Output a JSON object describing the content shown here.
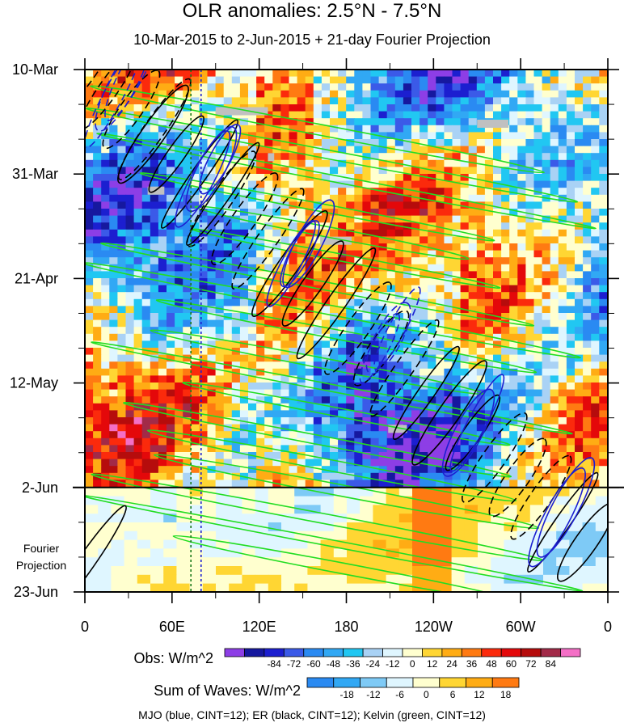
{
  "title": "OLR anomalies: 2.5°N - 7.5°N",
  "subtitle": "10-Mar-2015 to 2-Jun-2015 + 21-day Fourier Projection",
  "footer": "MJO (blue, CINT=12); ER (black, CINT=12); Kelvin (green, CINT=12)",
  "forecast_label": [
    "Fourier",
    "Projection"
  ],
  "chart_data": {
    "type": "heatmap",
    "title": "OLR anomalies: 2.5°N - 7.5°N",
    "subtitle": "10-Mar-2015 to 2-Jun-2015 + 21-day Fourier Projection",
    "xlabel": "",
    "ylabel": "",
    "x_ticks": [
      "0",
      "60E",
      "120E",
      "180",
      "120W",
      "60W",
      "0"
    ],
    "x_tick_values": [
      0,
      60,
      120,
      180,
      240,
      300,
      360
    ],
    "y_ticks": [
      "10-Mar",
      "31-Mar",
      "21-Apr",
      "12-May",
      "2-Jun",
      "23-Jun"
    ],
    "y_tick_days": [
      0,
      21,
      42,
      63,
      84,
      105
    ],
    "observed_end": "2-Jun",
    "colorbars": [
      {
        "title": "Obs: W/m^2",
        "ticks": [
          "-84",
          "-72",
          "-60",
          "-48",
          "-36",
          "-24",
          "-12",
          "0",
          "12",
          "24",
          "36",
          "48",
          "60",
          "72",
          "84"
        ],
        "colors": [
          "#8d3ee6",
          "#16189f",
          "#1c1fd0",
          "#3b5ae8",
          "#2a8af2",
          "#31a8f4",
          "#21c7f2",
          "#a9d2f5",
          "#dff6ff",
          "#ffffcf",
          "#ffd633",
          "#ffac14",
          "#ff7a12",
          "#fb2a0c",
          "#e4080a",
          "#b60c0c",
          "#a22a48",
          "#f46fc6"
        ]
      },
      {
        "title": "Sum of Waves: W/m^2",
        "ticks": [
          "-18",
          "-12",
          "-6",
          "0",
          "6",
          "12",
          "18"
        ],
        "colors": [
          "#2a8af2",
          "#31a8f4",
          "#7ecaf6",
          "#dff6ff",
          "#ffffcf",
          "#ffd633",
          "#ffac14",
          "#ff7a12"
        ]
      }
    ],
    "contours": [
      {
        "name": "MJO",
        "color": "#1c1fd0",
        "cint": 12
      },
      {
        "name": "ER",
        "color": "#000000",
        "cint": 12
      },
      {
        "name": "Kelvin",
        "color": "#22dd22",
        "cint": 12
      }
    ],
    "reference_lines_lon": [
      73,
      80
    ]
  }
}
